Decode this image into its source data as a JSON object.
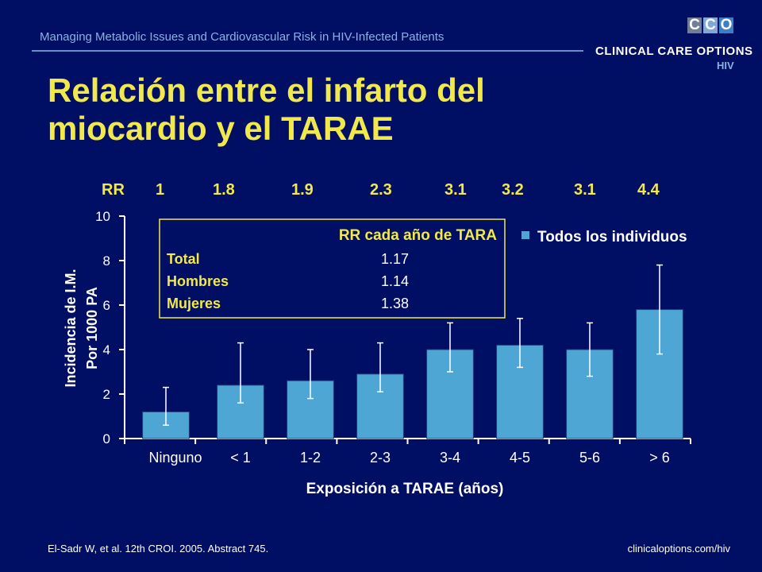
{
  "header": {
    "text": "Managing Metabolic Issues and Cardiovascular Risk in HIV-Infected Patients",
    "logo_letters": [
      "C",
      "C",
      "O"
    ],
    "logo_main": "CLINICAL CARE OPTIONS",
    "logo_sub": "HIV"
  },
  "title": "Relación entre el infarto del miocardio y el TARAE",
  "rr_row": {
    "label": "RR",
    "values": [
      "1",
      "1.8",
      "1.9",
      "2.3",
      "3.1",
      "3.2",
      "3.1",
      "4.4"
    ]
  },
  "table": {
    "header": "RR cada año de TARA",
    "rows": [
      {
        "label": "Total",
        "value": "1.17"
      },
      {
        "label": "Hombres",
        "value": "1.14"
      },
      {
        "label": "Mujeres",
        "value": "1.38"
      }
    ]
  },
  "chart_data": {
    "type": "bar",
    "categories": [
      "Ninguno",
      "< 1",
      "1-2",
      "2-3",
      "3-4",
      "4-5",
      "5-6",
      "> 6"
    ],
    "series": [
      {
        "name": "Todos los individuos",
        "values": [
          1.2,
          2.4,
          2.6,
          2.9,
          4.0,
          4.2,
          4.0,
          5.8
        ],
        "error_low": [
          0.6,
          1.6,
          1.8,
          2.1,
          3.0,
          3.2,
          2.8,
          3.8
        ],
        "error_high": [
          2.3,
          4.3,
          4.0,
          4.3,
          5.2,
          5.4,
          5.2,
          7.8
        ]
      }
    ],
    "xlabel": "Exposición a TARAE (años)",
    "ylabel": [
      "Incidencia de I.M.",
      "Por 1000 PA"
    ],
    "ylim": [
      0,
      10
    ],
    "yticks": [
      0,
      2,
      4,
      6,
      8,
      10
    ],
    "legend_position": "top-right",
    "grid": false
  },
  "colors": {
    "background": "#000e63",
    "bar": "#4ea6d4",
    "accent_yellow": "#f1e84c",
    "text": "#ffffff"
  },
  "footer": {
    "citation": "El-Sadr W, et al. 12th CROI. 2005. Abstract 745.",
    "url": "clinicaloptions.com/hiv"
  }
}
